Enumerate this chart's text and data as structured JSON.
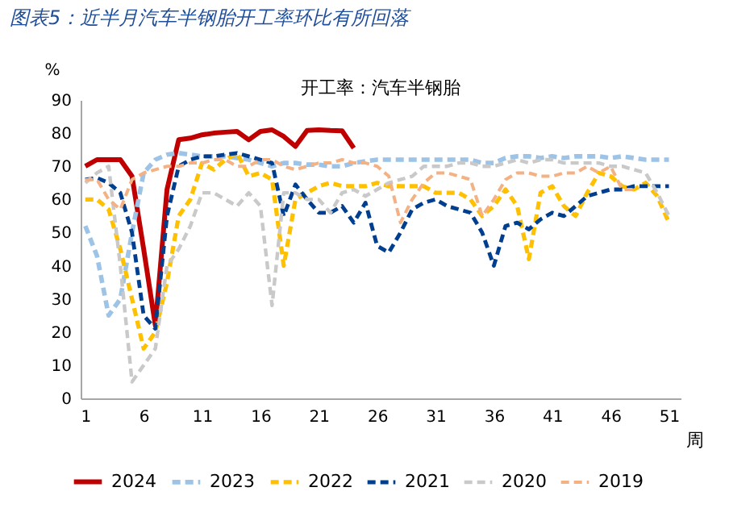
{
  "chart_data": {
    "type": "line",
    "title": "图表5：近半月汽车半钢胎开工率环比有所回落",
    "subtitle": "开工率：汽车半钢胎",
    "xlabel": "周",
    "ylabel": "%",
    "xlim": [
      0.6,
      52
    ],
    "xticks": [
      1,
      6,
      11,
      16,
      21,
      26,
      31,
      36,
      41,
      46,
      51
    ],
    "ylim": [
      0,
      90
    ],
    "yticks": [
      0,
      10,
      20,
      30,
      40,
      50,
      60,
      70,
      80,
      90
    ],
    "grid": false,
    "legend": "bottom",
    "marker": "none",
    "series": [
      {
        "name": "2024",
        "color": "#c00000",
        "line_style": "solid",
        "x": [
          1,
          2,
          3,
          4,
          5,
          6,
          7,
          8,
          9,
          10,
          11,
          12,
          13,
          14,
          15,
          16,
          17,
          18,
          19,
          20,
          21,
          22,
          23,
          24
        ],
        "values": [
          70,
          72,
          72,
          72,
          67,
          45,
          22,
          63,
          78,
          78.5,
          79.5,
          80,
          80.3,
          80.5,
          78,
          80.5,
          81,
          79,
          76,
          80.8,
          81,
          80.8,
          80.7,
          75.5
        ]
      },
      {
        "name": "2023",
        "color": "#9dc3e6",
        "line_style": "dashed",
        "x": [
          1,
          2,
          3,
          4,
          5,
          6,
          7,
          8,
          9,
          10,
          11,
          12,
          13,
          14,
          15,
          16,
          17,
          18,
          19,
          20,
          21,
          22,
          23,
          24,
          25,
          26,
          27,
          28,
          29,
          30,
          31,
          32,
          33,
          34,
          35,
          36,
          37,
          38,
          39,
          40,
          41,
          42,
          43,
          44,
          45,
          46,
          47,
          48,
          49,
          50,
          51
        ],
        "values": [
          52,
          43,
          25,
          30,
          50,
          68,
          72,
          73.5,
          74,
          73.5,
          73,
          73,
          73,
          72.5,
          72,
          71,
          70,
          71,
          71,
          70.5,
          70.5,
          70,
          70,
          71,
          71.5,
          72,
          72,
          72,
          72,
          72,
          72,
          72,
          72,
          72,
          71,
          71,
          72.5,
          73,
          73,
          72.5,
          73,
          72.5,
          73,
          73,
          73,
          72.5,
          73,
          72.5,
          72,
          72,
          72
        ]
      },
      {
        "name": "2022",
        "color": "#ffc000",
        "line_style": "dashed",
        "x": [
          1,
          2,
          3,
          4,
          5,
          6,
          7,
          8,
          9,
          10,
          11,
          12,
          13,
          14,
          15,
          16,
          17,
          18,
          19,
          20,
          21,
          22,
          23,
          24,
          25,
          26,
          27,
          28,
          29,
          30,
          31,
          32,
          33,
          34,
          35,
          36,
          37,
          38,
          39,
          40,
          41,
          42,
          43,
          44,
          45,
          46,
          47,
          48,
          49,
          50,
          51
        ],
        "values": [
          60,
          60,
          57,
          45,
          30,
          15,
          20,
          35,
          55,
          60,
          71,
          69,
          72,
          74,
          67,
          68,
          66,
          40,
          60,
          62,
          64,
          65,
          64,
          64,
          64,
          65,
          64,
          64,
          64,
          64,
          62,
          62,
          62,
          60,
          55,
          58,
          63,
          58,
          42,
          62,
          64,
          58,
          55,
          62,
          68,
          67,
          64,
          63,
          65,
          61,
          53
        ]
      },
      {
        "name": "2021",
        "color": "#003f8f",
        "line_style": "dashed",
        "x": [
          1,
          2,
          3,
          4,
          5,
          6,
          7,
          8,
          9,
          10,
          11,
          12,
          13,
          14,
          15,
          16,
          17,
          18,
          19,
          20,
          21,
          22,
          23,
          24,
          25,
          26,
          27,
          28,
          29,
          30,
          31,
          32,
          33,
          34,
          35,
          36,
          37,
          38,
          39,
          40,
          41,
          42,
          43,
          44,
          45,
          46,
          47,
          48,
          49,
          50,
          51
        ],
        "values": [
          66,
          66.5,
          65,
          62,
          50,
          25,
          21,
          55,
          70,
          72,
          73,
          73,
          73.5,
          74,
          73,
          72,
          71,
          55,
          64.5,
          60,
          56,
          56,
          58,
          53,
          59,
          46,
          44,
          50,
          57,
          59,
          60,
          58,
          57,
          56,
          50,
          40,
          52,
          53,
          51,
          54,
          56,
          55,
          58,
          61,
          62,
          63,
          63,
          64,
          64,
          64,
          64
        ]
      },
      {
        "name": "2020",
        "color": "#c9c9c9",
        "line_style": "dashed",
        "x": [
          1,
          2,
          3,
          4,
          5,
          6,
          7,
          8,
          9,
          10,
          11,
          12,
          13,
          14,
          15,
          16,
          17,
          18,
          19,
          20,
          21,
          22,
          23,
          24,
          25,
          26,
          27,
          28,
          29,
          30,
          31,
          32,
          33,
          34,
          35,
          36,
          37,
          38,
          39,
          40,
          41,
          42,
          43,
          44,
          45,
          46,
          47,
          48,
          49,
          50,
          51
        ],
        "values": [
          65,
          68,
          70,
          40,
          5,
          10,
          15,
          40,
          45,
          52,
          62,
          62,
          60,
          58,
          62,
          58,
          28,
          62,
          62,
          60,
          60,
          56,
          62,
          63,
          61,
          63,
          65,
          66,
          67,
          70,
          70,
          70,
          71,
          71,
          70,
          70,
          71,
          72,
          71,
          72,
          72,
          71,
          71,
          71,
          71,
          70,
          70,
          69,
          68,
          62,
          55
        ]
      },
      {
        "name": "2019",
        "color": "#f4b183",
        "line_style": "dashed",
        "x": [
          1,
          2,
          3,
          4,
          5,
          6,
          7,
          8,
          9,
          10,
          11,
          12,
          13,
          14,
          15,
          16,
          17,
          18,
          19,
          20,
          21,
          22,
          23,
          24,
          25,
          26,
          27,
          28,
          29,
          30,
          31,
          32,
          33,
          34,
          35,
          36,
          37,
          38,
          39,
          40,
          41,
          42,
          43,
          44,
          45,
          46,
          47,
          48
        ],
        "values": [
          66,
          66,
          60,
          57,
          66,
          68,
          69,
          70,
          70,
          71,
          71,
          72,
          72,
          70,
          70,
          72,
          72,
          70,
          69,
          70,
          71,
          71,
          72,
          71,
          71,
          70,
          67,
          53,
          60,
          65,
          68,
          68,
          67,
          66,
          55,
          60,
          66,
          68,
          68,
          67,
          67,
          68,
          68,
          70,
          68,
          70,
          63,
          63
        ]
      }
    ]
  }
}
